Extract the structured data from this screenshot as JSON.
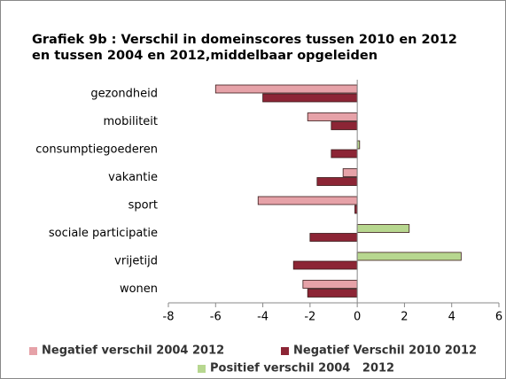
{
  "chart_data": {
    "type": "hbar",
    "title": [
      "Grafiek 9b : Verschil in domeinscores tussen 2010 en 2012",
      "en tussen 2004 en 2012,middelbaar opgeleiden"
    ],
    "categories": [
      "gezondheid",
      "mobiliteit",
      "consumptiegoederen",
      "vakantie",
      "sport",
      "sociale participatie",
      "vrijetijd",
      "wonen"
    ],
    "series": [
      {
        "name": "Negatief verschil 2004 2012",
        "color": "#e6a2a8",
        "values": [
          -6.0,
          -2.1,
          null,
          -0.6,
          -4.2,
          null,
          null,
          -2.3
        ]
      },
      {
        "name": "Negatief Verschil 2010 2012",
        "color": "#8c2535",
        "values": [
          -4.0,
          -1.1,
          -1.1,
          -1.7,
          -0.1,
          -2.0,
          -2.7,
          -2.1
        ]
      },
      {
        "name": "Positief verschil 2004   2012",
        "color": "#b7d78f",
        "values": [
          null,
          null,
          0.1,
          null,
          null,
          2.2,
          4.4,
          null
        ]
      }
    ],
    "xlim": [
      -8,
      6
    ],
    "xticks": [
      -8,
      -6,
      -4,
      -2,
      0,
      2,
      4,
      6
    ]
  }
}
